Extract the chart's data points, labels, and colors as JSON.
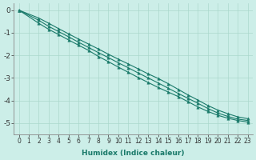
{
  "xlabel": "Humidex (Indice chaleur)",
  "bg_color": "#cceee8",
  "grid_color": "#aad8cc",
  "line_color": "#1a7a6a",
  "xlim": [
    -0.5,
    23.5
  ],
  "ylim": [
    -5.5,
    0.3
  ],
  "x": [
    0,
    2,
    3,
    4,
    5,
    6,
    7,
    8,
    9,
    10,
    11,
    12,
    13,
    14,
    15,
    16,
    17,
    18,
    19,
    20,
    21,
    22,
    23
  ],
  "line1": [
    0.0,
    -0.45,
    -0.72,
    -0.95,
    -1.18,
    -1.42,
    -1.65,
    -1.88,
    -2.1,
    -2.33,
    -2.55,
    -2.78,
    -3.0,
    -3.22,
    -3.45,
    -3.68,
    -3.9,
    -4.12,
    -4.35,
    -4.55,
    -4.7,
    -4.82,
    -4.88
  ],
  "line2": [
    0.0,
    -0.58,
    -0.85,
    -1.08,
    -1.32,
    -1.55,
    -1.78,
    -2.05,
    -2.28,
    -2.52,
    -2.75,
    -2.98,
    -3.2,
    -3.42,
    -3.62,
    -3.82,
    -4.05,
    -4.28,
    -4.48,
    -4.65,
    -4.78,
    -4.88,
    -4.95
  ],
  "line3": [
    0.0,
    -0.35,
    -0.58,
    -0.82,
    -1.05,
    -1.28,
    -1.5,
    -1.72,
    -1.95,
    -2.17,
    -2.38,
    -2.6,
    -2.82,
    -3.02,
    -3.25,
    -3.5,
    -3.75,
    -3.98,
    -4.22,
    -4.42,
    -4.58,
    -4.72,
    -4.8
  ],
  "xlabel_fontsize": 6.5,
  "ytick_fontsize": 6.5,
  "xtick_fontsize": 5.5
}
